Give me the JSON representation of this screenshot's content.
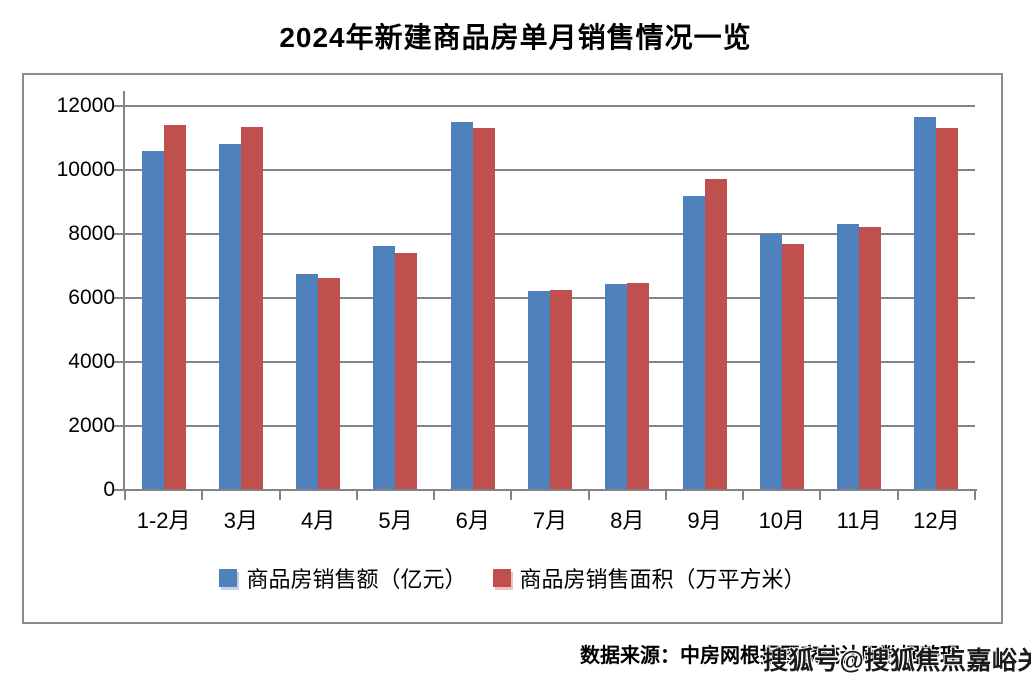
{
  "page": {
    "title": "2024年新建商品房单月销售情况一览"
  },
  "chart_data": {
    "type": "bar",
    "title": "2024年新建商品房单月销售情况一览",
    "categories": [
      "1-2月",
      "3月",
      "4月",
      "5月",
      "6月",
      "7月",
      "8月",
      "9月",
      "10月",
      "11月",
      "12月"
    ],
    "series": [
      {
        "name": "商品房销售额（亿元）",
        "color": "#4F81BD",
        "values": [
          10566,
          10789,
          6712,
          7598,
          11468,
          6197,
          6393,
          9157,
          7975,
          8270,
          11625
        ]
      },
      {
        "name": "商品房销售面积（万平方米）",
        "color": "#C0504D",
        "values": [
          11369,
          11299,
          6584,
          7390,
          11274,
          6233,
          6453,
          9682,
          7646,
          8188,
          11267
        ]
      }
    ],
    "xlabel": "",
    "ylabel": "",
    "ylim": [
      0,
      12000
    ],
    "y_ticks": [
      0,
      2000,
      4000,
      6000,
      8000,
      10000,
      12000
    ],
    "grid": "horizontal",
    "legend_position": "bottom"
  },
  "style": {
    "grid_color": "#848484",
    "frame_border_color": "#8C8C8C",
    "title_color": "#000000",
    "background": "#FFFFFF"
  },
  "footer": {
    "source_text": "数据来源：中房网根据国家统计局数据整理",
    "watermark": "搜狐号@搜狐焦点嘉峪关站"
  }
}
